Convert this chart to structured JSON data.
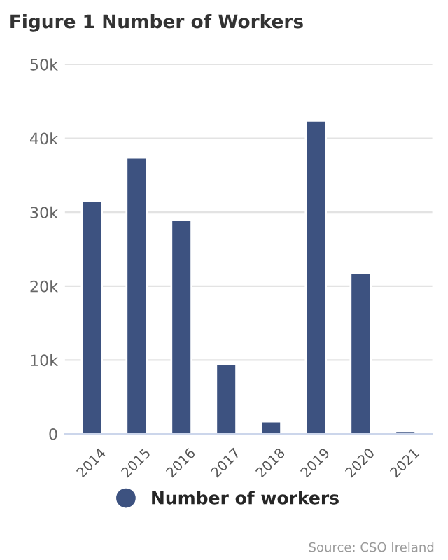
{
  "chart_data": {
    "type": "bar",
    "title": "Figure 1 Number of Workers",
    "categories": [
      "2014",
      "2015",
      "2016",
      "2017",
      "2018",
      "2019",
      "2020",
      "2021"
    ],
    "series": [
      {
        "name": "Number of workers",
        "color": "#3d5280",
        "values": [
          31500,
          37400,
          29000,
          9400,
          1700,
          42400,
          21800,
          400
        ]
      }
    ],
    "ylim": [
      0,
      50000
    ],
    "yticks": [
      {
        "value": 0,
        "label": "0"
      },
      {
        "value": 10000,
        "label": "10k"
      },
      {
        "value": 20000,
        "label": "20k"
      },
      {
        "value": 30000,
        "label": "30k"
      },
      {
        "value": 40000,
        "label": "40k"
      },
      {
        "value": 50000,
        "label": "50k"
      }
    ],
    "grid": "y",
    "legend": "bottom",
    "annotations": [
      "Source: CSO Ireland"
    ]
  }
}
